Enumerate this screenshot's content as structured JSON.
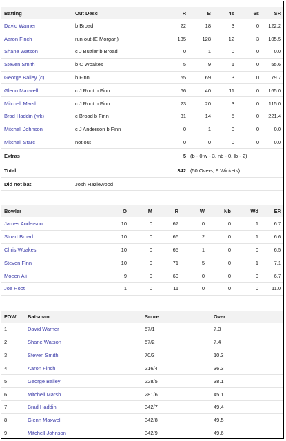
{
  "batting": {
    "headers": {
      "batting": "Batting",
      "out_desc": "Out Desc",
      "r": "R",
      "b": "B",
      "fours": "4s",
      "sixes": "6s",
      "sr": "SR"
    },
    "rows": [
      {
        "name": "David Warner",
        "out": "b Broad",
        "r": "22",
        "b": "18",
        "fours": "3",
        "sixes": "0",
        "sr": "122.2"
      },
      {
        "name": "Aaron Finch",
        "out": "run out (E Morgan)",
        "r": "135",
        "b": "128",
        "fours": "12",
        "sixes": "3",
        "sr": "105.5"
      },
      {
        "name": "Shane Watson",
        "out": "c J Buttler b Broad",
        "r": "0",
        "b": "1",
        "fours": "0",
        "sixes": "0",
        "sr": "0.0"
      },
      {
        "name": "Steven Smith",
        "out": "b C Woakes",
        "r": "5",
        "b": "9",
        "fours": "1",
        "sixes": "0",
        "sr": "55.6"
      },
      {
        "name": "George Bailey (c)",
        "out": "b Finn",
        "r": "55",
        "b": "69",
        "fours": "3",
        "sixes": "0",
        "sr": "79.7"
      },
      {
        "name": "Glenn Maxwell",
        "out": "c J Root b Finn",
        "r": "66",
        "b": "40",
        "fours": "11",
        "sixes": "0",
        "sr": "165.0"
      },
      {
        "name": "Mitchell Marsh",
        "out": "c J Root b Finn",
        "r": "23",
        "b": "20",
        "fours": "3",
        "sixes": "0",
        "sr": "115.0"
      },
      {
        "name": "Brad Haddin (wk)",
        "out": "c Broad b Finn",
        "r": "31",
        "b": "14",
        "fours": "5",
        "sixes": "0",
        "sr": "221.4"
      },
      {
        "name": "Mitchell Johnson",
        "out": "c J Anderson b Finn",
        "r": "0",
        "b": "1",
        "fours": "0",
        "sixes": "0",
        "sr": "0.0"
      },
      {
        "name": "Mitchell Starc",
        "out": "not out",
        "r": "0",
        "b": "0",
        "fours": "0",
        "sixes": "0",
        "sr": "0.0"
      }
    ],
    "extras": {
      "label": "Extras",
      "value": "5",
      "detail": "(b - 0 w - 3, nb - 0, lb - 2)"
    },
    "total": {
      "label": "Total",
      "value": "342",
      "detail": "(50 Overs, 9 Wickets)"
    },
    "did_not_bat": {
      "label": "Did not bat:",
      "players": "Josh Hazlewood"
    }
  },
  "bowling": {
    "headers": {
      "bowler": "Bowler",
      "o": "O",
      "m": "M",
      "r": "R",
      "w": "W",
      "nb": "Nb",
      "wd": "Wd",
      "er": "ER"
    },
    "rows": [
      {
        "name": "James Anderson",
        "o": "10",
        "m": "0",
        "r": "67",
        "w": "0",
        "nb": "0",
        "wd": "1",
        "er": "6.7"
      },
      {
        "name": "Stuart Broad",
        "o": "10",
        "m": "0",
        "r": "66",
        "w": "2",
        "nb": "0",
        "wd": "1",
        "er": "6.6"
      },
      {
        "name": "Chris Woakes",
        "o": "10",
        "m": "0",
        "r": "65",
        "w": "1",
        "nb": "0",
        "wd": "0",
        "er": "6.5"
      },
      {
        "name": "Steven Finn",
        "o": "10",
        "m": "0",
        "r": "71",
        "w": "5",
        "nb": "0",
        "wd": "1",
        "er": "7.1"
      },
      {
        "name": "Moeen Ali",
        "o": "9",
        "m": "0",
        "r": "60",
        "w": "0",
        "nb": "0",
        "wd": "0",
        "er": "6.7"
      },
      {
        "name": "Joe Root",
        "o": "1",
        "m": "0",
        "r": "11",
        "w": "0",
        "nb": "0",
        "wd": "0",
        "er": "11.0"
      }
    ]
  },
  "fow": {
    "headers": {
      "fow": "FOW",
      "batsman": "Batsman",
      "score": "Score",
      "over": "Over"
    },
    "rows": [
      {
        "n": "1",
        "name": "David Warner",
        "score": "57/1",
        "over": "7.3"
      },
      {
        "n": "2",
        "name": "Shane Watson",
        "score": "57/2",
        "over": "7.4"
      },
      {
        "n": "3",
        "name": "Steven Smith",
        "score": "70/3",
        "over": "10.3"
      },
      {
        "n": "4",
        "name": "Aaron Finch",
        "score": "216/4",
        "over": "36.3"
      },
      {
        "n": "5",
        "name": "George Bailey",
        "score": "228/5",
        "over": "38.1"
      },
      {
        "n": "6",
        "name": "Mitchell Marsh",
        "score": "281/6",
        "over": "45.1"
      },
      {
        "n": "7",
        "name": "Brad Haddin",
        "score": "342/7",
        "over": "49.4"
      },
      {
        "n": "8",
        "name": "Glenn Maxwell",
        "score": "342/8",
        "over": "49.5"
      },
      {
        "n": "9",
        "name": "Mitchell Johnson",
        "score": "342/9",
        "over": "49.6"
      }
    ]
  },
  "colors": {
    "link": "#3b3ba8",
    "header_bg": "#f2f2f2",
    "divider": "#e4e4e4"
  }
}
